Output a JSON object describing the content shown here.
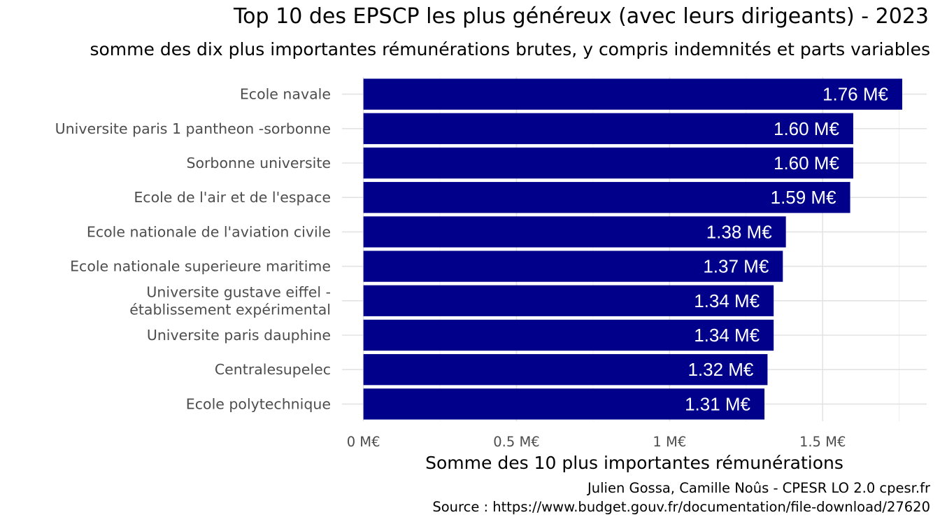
{
  "chart_data": {
    "type": "bar",
    "orientation": "horizontal",
    "title": "Top 10 des EPSCP les plus généreux (avec leurs dirigeants) - 2023",
    "subtitle": "somme des dix plus importantes rémunérations brutes, y compris indemnités et parts variables",
    "xlabel": "Somme des 10 plus importantes rémunérations",
    "ylabel": "",
    "categories": [
      [
        "Ecole navale"
      ],
      [
        "Universite paris 1 pantheon -sorbonne"
      ],
      [
        "Sorbonne universite"
      ],
      [
        "Ecole de l'air et de l'espace"
      ],
      [
        "Ecole nationale de l'aviation civile"
      ],
      [
        "Ecole nationale superieure maritime"
      ],
      [
        "Universite gustave eiffel -",
        "établissement expérimental"
      ],
      [
        "Universite paris dauphine"
      ],
      [
        "Centralesupelec"
      ],
      [
        "Ecole polytechnique"
      ]
    ],
    "values": [
      1.76,
      1.6,
      1.6,
      1.59,
      1.38,
      1.37,
      1.34,
      1.34,
      1.32,
      1.31
    ],
    "data_labels": [
      "1.76 M€",
      "1.60 M€",
      "1.60 M€",
      "1.59 M€",
      "1.38 M€",
      "1.37 M€",
      "1.34 M€",
      "1.34 M€",
      "1.32 M€",
      "1.31 M€"
    ],
    "x_ticks": [
      0,
      0.5,
      1,
      1.5
    ],
    "x_tick_labels": [
      "0 M€",
      "0.5 M€",
      "1 M€",
      "1.5 M€"
    ],
    "xlim": [
      -0.07,
      1.84
    ],
    "grid": true,
    "bar_color": "#00008B",
    "label_color": "#ffffff",
    "caption": [
      "Julien Gossa, Camille Noûs - CPESR LO 2.0 cpesr.fr",
      "Source : https://www.budget.gouv.fr/documentation/file-download/27620"
    ]
  }
}
